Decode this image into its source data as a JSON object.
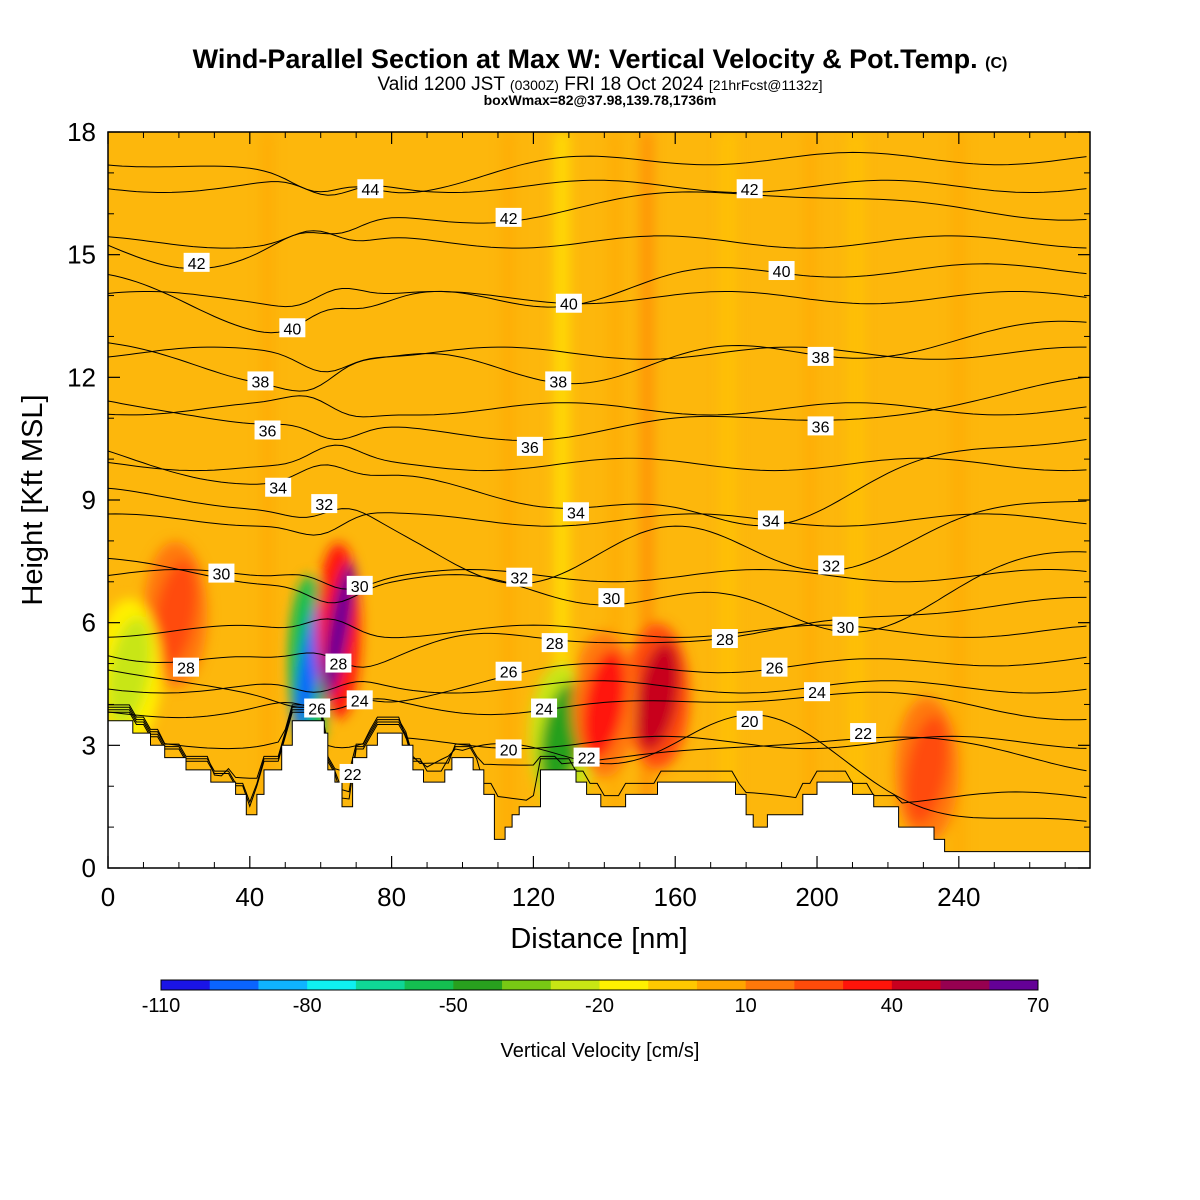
{
  "title": {
    "main": "Wind-Parallel Section at Max W: Vertical Velocity & Pot.Temp.",
    "main_suffix": "(C)",
    "valid_a": "Valid 1200 JST",
    "valid_b": "(0300Z)",
    "valid_c": "FRI 18 Oct 2024",
    "valid_d": "[21hrFcst@1132z]",
    "box": "boxWmax=82@37.98,139.78,1736m"
  },
  "colors": {
    "background_fill": "#fdb70c",
    "terrain": "#ffffff",
    "contour_line": "#000000",
    "colorbar": [
      "#1a14e6",
      "#0a64ff",
      "#0fb4ff",
      "#0ff0f0",
      "#0fd796",
      "#14be50",
      "#28a01e",
      "#78c814",
      "#c8e614",
      "#fff000",
      "#ffc800",
      "#ffa500",
      "#ff780a",
      "#ff4b0a",
      "#ff140a",
      "#c8001e",
      "#960050",
      "#640096"
    ]
  },
  "chart_data": {
    "type": "heatmap",
    "xlabel": "Distance [nm]",
    "ylabel": "Height [Kft MSL]",
    "xlim": [
      0,
      277
    ],
    "ylim": [
      0,
      18
    ],
    "x_ticks": [
      "0",
      "40",
      "80",
      "120",
      "160",
      "200",
      "240"
    ],
    "x_tick_values": [
      0,
      40,
      80,
      120,
      160,
      200,
      240
    ],
    "y_ticks": [
      "0",
      "3",
      "6",
      "9",
      "12",
      "15",
      "18"
    ],
    "y_tick_values": [
      0,
      3,
      6,
      9,
      12,
      15,
      18
    ],
    "colorbar": {
      "label": "Vertical Velocity [cm/s]",
      "ticks": [
        "-110",
        "-80",
        "-50",
        "-20",
        "10",
        "40",
        "70"
      ],
      "tick_values": [
        -110,
        -80,
        -50,
        -20,
        10,
        40,
        70
      ],
      "range": [
        -110,
        70
      ],
      "step": 10
    },
    "terrain_height_kft": [
      [
        0,
        3.6
      ],
      [
        7,
        3.6
      ],
      [
        7,
        3.3
      ],
      [
        12,
        3.3
      ],
      [
        12,
        3.0
      ],
      [
        16,
        3.0
      ],
      [
        16,
        2.7
      ],
      [
        22,
        2.7
      ],
      [
        22,
        2.4
      ],
      [
        29,
        2.4
      ],
      [
        29,
        2.1
      ],
      [
        36,
        2.1
      ],
      [
        36,
        1.8
      ],
      [
        39,
        1.8
      ],
      [
        39,
        1.3
      ],
      [
        42,
        1.3
      ],
      [
        42,
        1.8
      ],
      [
        44,
        1.8
      ],
      [
        44,
        2.4
      ],
      [
        49,
        2.4
      ],
      [
        49,
        3.0
      ],
      [
        52,
        3.0
      ],
      [
        52,
        3.6
      ],
      [
        61,
        3.6
      ],
      [
        61,
        3.3
      ],
      [
        62,
        3.3
      ],
      [
        62,
        2.4
      ],
      [
        64,
        2.4
      ],
      [
        64,
        2.1
      ],
      [
        66,
        2.1
      ],
      [
        66,
        1.5
      ],
      [
        69,
        1.5
      ],
      [
        69,
        2.7
      ],
      [
        73,
        2.7
      ],
      [
        73,
        3.0
      ],
      [
        76,
        3.0
      ],
      [
        76,
        3.3
      ],
      [
        83,
        3.3
      ],
      [
        83,
        3.0
      ],
      [
        86,
        3.0
      ],
      [
        86,
        2.4
      ],
      [
        89,
        2.4
      ],
      [
        89,
        2.1
      ],
      [
        95,
        2.1
      ],
      [
        95,
        2.4
      ],
      [
        97,
        2.4
      ],
      [
        97,
        2.7
      ],
      [
        103,
        2.7
      ],
      [
        103,
        2.4
      ],
      [
        106,
        2.4
      ],
      [
        106,
        1.8
      ],
      [
        109,
        1.8
      ],
      [
        109,
        0.7
      ],
      [
        112,
        0.7
      ],
      [
        112,
        1.0
      ],
      [
        114,
        1.0
      ],
      [
        114,
        1.3
      ],
      [
        116,
        1.3
      ],
      [
        116,
        1.5
      ],
      [
        122,
        1.5
      ],
      [
        122,
        2.4
      ],
      [
        132,
        2.4
      ],
      [
        132,
        2.1
      ],
      [
        135,
        2.1
      ],
      [
        135,
        1.8
      ],
      [
        139,
        1.8
      ],
      [
        139,
        1.5
      ],
      [
        146,
        1.5
      ],
      [
        146,
        1.8
      ],
      [
        155,
        1.8
      ],
      [
        155,
        2.1
      ],
      [
        177,
        2.1
      ],
      [
        177,
        1.8
      ],
      [
        180,
        1.8
      ],
      [
        180,
        1.3
      ],
      [
        182,
        1.3
      ],
      [
        182,
        1.0
      ],
      [
        186,
        1.0
      ],
      [
        186,
        1.3
      ],
      [
        196,
        1.3
      ],
      [
        196,
        1.8
      ],
      [
        200,
        1.8
      ],
      [
        200,
        2.1
      ],
      [
        210,
        2.1
      ],
      [
        210,
        1.8
      ],
      [
        216,
        1.8
      ],
      [
        216,
        1.5
      ],
      [
        223,
        1.5
      ],
      [
        223,
        1.0
      ],
      [
        233,
        1.0
      ],
      [
        233,
        0.7
      ],
      [
        236,
        0.7
      ],
      [
        236,
        0.4
      ],
      [
        277,
        0.4
      ]
    ],
    "theta_contours": {
      "levels": [
        20,
        21,
        22,
        23,
        24,
        25,
        26,
        27,
        28,
        29,
        30,
        31,
        32,
        33,
        34,
        35,
        36,
        37,
        38,
        39,
        40,
        41,
        42,
        43,
        44
      ],
      "labels": [
        {
          "text": "44",
          "x": 74,
          "y": 16.6
        },
        {
          "text": "42",
          "x": 25,
          "y": 14.8
        },
        {
          "text": "42",
          "x": 113,
          "y": 15.9
        },
        {
          "text": "42",
          "x": 181,
          "y": 16.6
        },
        {
          "text": "40",
          "x": 52,
          "y": 13.2
        },
        {
          "text": "40",
          "x": 130,
          "y": 13.8
        },
        {
          "text": "40",
          "x": 190,
          "y": 14.6
        },
        {
          "text": "38",
          "x": 43,
          "y": 11.9
        },
        {
          "text": "38",
          "x": 127,
          "y": 11.9
        },
        {
          "text": "38",
          "x": 201,
          "y": 12.5
        },
        {
          "text": "36",
          "x": 45,
          "y": 10.7
        },
        {
          "text": "36",
          "x": 119,
          "y": 10.3
        },
        {
          "text": "36",
          "x": 201,
          "y": 10.8
        },
        {
          "text": "34",
          "x": 48,
          "y": 9.3
        },
        {
          "text": "34",
          "x": 132,
          "y": 8.7
        },
        {
          "text": "34",
          "x": 187,
          "y": 8.5
        },
        {
          "text": "32",
          "x": 61,
          "y": 8.9
        },
        {
          "text": "32",
          "x": 116,
          "y": 7.1
        },
        {
          "text": "32",
          "x": 204,
          "y": 7.4
        },
        {
          "text": "30",
          "x": 32,
          "y": 7.2
        },
        {
          "text": "30",
          "x": 71,
          "y": 6.9
        },
        {
          "text": "30",
          "x": 142,
          "y": 6.6
        },
        {
          "text": "30",
          "x": 208,
          "y": 5.9
        },
        {
          "text": "28",
          "x": 22,
          "y": 4.9
        },
        {
          "text": "28",
          "x": 65,
          "y": 5.0
        },
        {
          "text": "28",
          "x": 126,
          "y": 5.5
        },
        {
          "text": "28",
          "x": 174,
          "y": 5.6
        },
        {
          "text": "26",
          "x": 113,
          "y": 4.8
        },
        {
          "text": "26",
          "x": 59,
          "y": 3.9
        },
        {
          "text": "26",
          "x": 188,
          "y": 4.9
        },
        {
          "text": "24",
          "x": 71,
          "y": 4.1
        },
        {
          "text": "24",
          "x": 123,
          "y": 3.9
        },
        {
          "text": "24",
          "x": 200,
          "y": 4.3
        },
        {
          "text": "22",
          "x": 69,
          "y": 2.3
        },
        {
          "text": "22",
          "x": 135,
          "y": 2.7
        },
        {
          "text": "22",
          "x": 213,
          "y": 3.3
        },
        {
          "text": "20",
          "x": 113,
          "y": 2.9
        },
        {
          "text": "20",
          "x": 181,
          "y": 3.6
        }
      ]
    },
    "w_features": [
      {
        "x": 57,
        "y": 5.0,
        "value": -100
      },
      {
        "x": 65,
        "y": 5.8,
        "value": 70
      },
      {
        "x": 19,
        "y": 6.2,
        "value": 20
      },
      {
        "x": 6,
        "y": 4.8,
        "value": -30
      },
      {
        "x": 128,
        "y": 3.2,
        "value": -50
      },
      {
        "x": 155,
        "y": 4.2,
        "value": 40
      },
      {
        "x": 231,
        "y": 2.4,
        "value": 20
      },
      {
        "x": 140,
        "y": 4.0,
        "value": 30
      }
    ]
  }
}
